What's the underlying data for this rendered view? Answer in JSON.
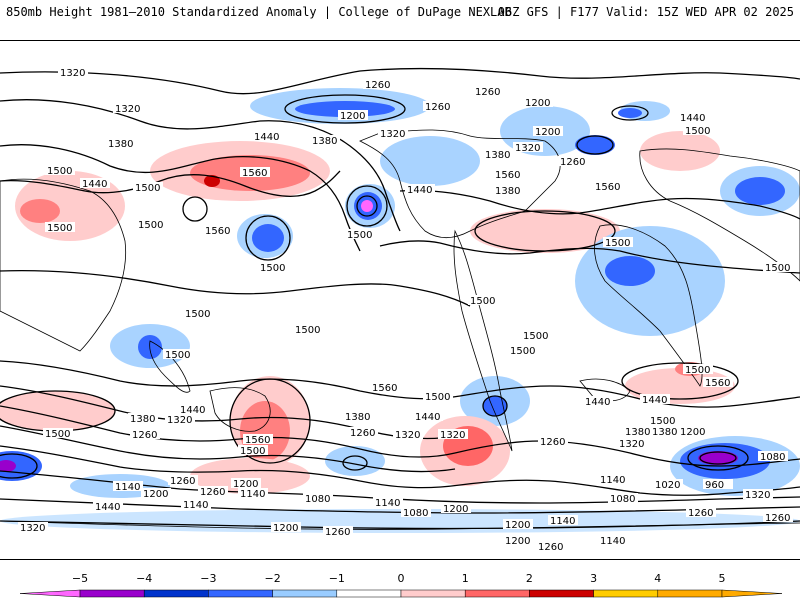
{
  "header": {
    "left": "850mb Height 1981–2010 Standardized Anomaly | College of DuPage NEXLAB",
    "right": "06Z GFS | F177 Valid: 15Z WED APR 02 2025"
  },
  "legend": {
    "ticks": [
      "−5",
      "−4",
      "−3",
      "−2",
      "−1",
      "0",
      "1",
      "2",
      "3",
      "4",
      "5"
    ],
    "colors": [
      "#ff66ff",
      "#9900cc",
      "#0033cc",
      "#3366ff",
      "#99ccff",
      "#ffffff",
      "#ffcccc",
      "#ff6666",
      "#cc0000",
      "#ffcc00",
      "#ffaa00"
    ]
  },
  "contours": {
    "l1": "1320",
    "l2": "1320",
    "l3": "1380",
    "l4": "1440",
    "l5": "1500",
    "l6": "1440",
    "l7": "1500",
    "l8": "1560",
    "l9": "1500",
    "l10": "1560",
    "l11": "1380",
    "l12": "1440",
    "l13": "1200",
    "l14": "1260",
    "l15": "1320",
    "l16": "1500",
    "l17": "1260",
    "l18": "1200",
    "l19": "1320",
    "l20": "1380",
    "l21": "1260",
    "l22": "1440",
    "l23": "1500",
    "l24": "1560",
    "l25": "1560",
    "l26": "1500",
    "l27": "1500",
    "l28": "1500",
    "l29": "1500",
    "l30": "1500",
    "l31": "1500",
    "l32": "1560",
    "l33": "1500",
    "l34": "1500",
    "l35": "1440",
    "l36": "1380",
    "l37": "1320",
    "l38": "1260",
    "l39": "1440",
    "l40": "1500",
    "l41": "1560",
    "l42": "1500",
    "l43": "1380",
    "l44": "1260",
    "l45": "1380",
    "l46": "1320",
    "l47": "1260",
    "l48": "1200",
    "l49": "1260",
    "l50": "1140",
    "l51": "1140",
    "l52": "1080",
    "l53": "1140",
    "l54": "1200",
    "l55": "1260",
    "l56": "1200",
    "l57": "1200",
    "l58": "1140",
    "l59": "1080",
    "l60": "1260",
    "l61": "1440",
    "l62": "1500",
    "l63": "1560",
    "l64": "1500",
    "l65": "1440",
    "l66": "1380",
    "l67": "1320",
    "l68": "1200",
    "l69": "1080",
    "l70": "1020",
    "l71": "960",
    "l72": "1260",
    "l73": "1320",
    "l74": "1200",
    "l75": "1140",
    "l76": "1260",
    "l77": "1440",
    "l78": "1500",
    "l79": "1320",
    "l80": "1380",
    "l81": "1500",
    "l82": "1320",
    "l83": "1140",
    "l84": "1200",
    "l85": "1260",
    "l86": "1140",
    "l87": "1080",
    "l88": "1500",
    "l89": "1200",
    "l90": "1260"
  }
}
